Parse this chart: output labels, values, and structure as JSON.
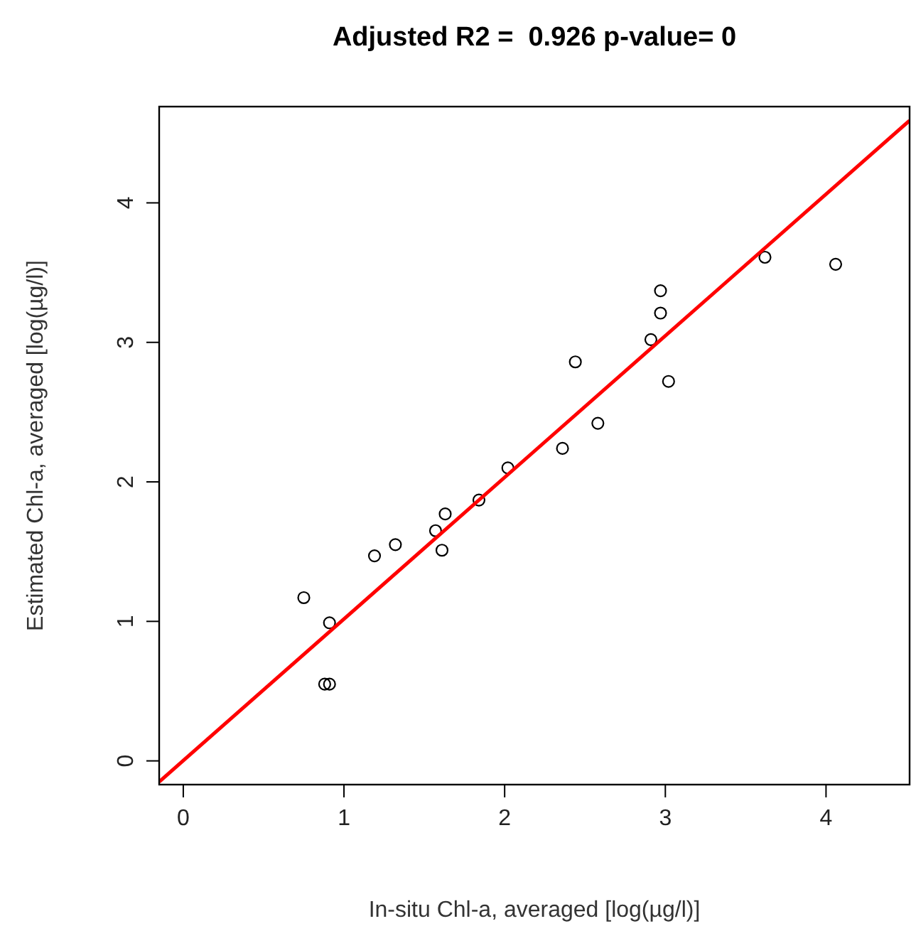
{
  "chart_data": {
    "type": "scatter",
    "title": "Adjusted R2 =  0.926 p-value= 0",
    "xlabel": "In-situ Chl-a, averaged [log(µg/l)]",
    "ylabel": "Estimated Chl-a, averaged [log(µg/l)]",
    "xlim": [
      -0.15,
      4.52
    ],
    "ylim": [
      -0.17,
      4.69
    ],
    "xticks": [
      0,
      1,
      2,
      3,
      4
    ],
    "yticks": [
      0,
      1,
      2,
      3,
      4
    ],
    "grid": false,
    "marker": "circle",
    "series": [
      {
        "color": "#000000",
        "x": [
          0.75,
          0.91,
          0.88,
          0.91,
          1.19,
          1.32,
          1.57,
          1.61,
          1.63,
          1.84,
          2.02,
          2.36,
          2.44,
          2.58,
          2.91,
          2.97,
          2.97,
          3.02,
          3.62,
          4.06
        ],
        "values": [
          1.17,
          0.99,
          0.55,
          0.55,
          1.47,
          1.55,
          1.65,
          1.51,
          1.77,
          1.87,
          2.1,
          2.24,
          2.86,
          2.42,
          3.02,
          3.37,
          3.21,
          2.72,
          3.61,
          3.56
        ]
      },
      {
        "type": "line",
        "color": "#ff0000",
        "line_style": "solid",
        "marker": "none",
        "x": [
          -0.15,
          4.52
        ],
        "values": [
          -0.15,
          4.59
        ]
      }
    ]
  }
}
